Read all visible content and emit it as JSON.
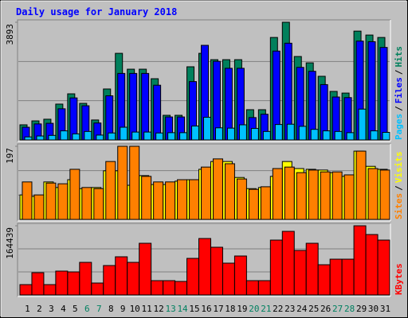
{
  "title": "Daily usage for January 2018",
  "chart_data": [
    {
      "type": "bar",
      "ylim": [
        0,
        3893
      ],
      "yticks": [
        3893
      ],
      "legend_separator": "/",
      "series": [
        {
          "name": "Pages",
          "color": "#00c0ff",
          "values": [
            100,
            130,
            150,
            300,
            200,
            280,
            160,
            230,
            420,
            260,
            260,
            230,
            240,
            240,
            460,
            750,
            400,
            390,
            500,
            380,
            280,
            510,
            520,
            450,
            350,
            300,
            280,
            240,
            1020,
            300,
            250
          ]
        },
        {
          "name": "Files",
          "color": "#0000ff",
          "values": [
            420,
            530,
            550,
            1030,
            1390,
            1130,
            560,
            1460,
            2200,
            2200,
            2200,
            1810,
            760,
            760,
            1930,
            3130,
            2600,
            2370,
            2370,
            740,
            850,
            2940,
            3200,
            2400,
            2270,
            1830,
            1420,
            1400,
            3270,
            3250,
            3060
          ]
        },
        {
          "name": "Hits",
          "color": "#00805c",
          "values": [
            500,
            630,
            685,
            1185,
            1525,
            1210,
            660,
            1685,
            2865,
            2340,
            2340,
            2025,
            815,
            815,
            2420,
            2865,
            2655,
            2655,
            2655,
            1000,
            1000,
            3390,
            3893,
            2760,
            2550,
            2105,
            1605,
            1550,
            3600,
            3470,
            3390
          ]
        }
      ]
    },
    {
      "type": "bar",
      "ylim": [
        0,
        197
      ],
      "yticks": [
        197
      ],
      "legend_separator": "/",
      "series": [
        {
          "name": "Sites",
          "color": "#ff8000",
          "values": [
            101,
            66,
            98,
            96,
            135,
            86,
            83,
            156,
            197,
            197,
            116,
            101,
            101,
            107,
            107,
            141,
            163,
            150,
            109,
            81,
            88,
            137,
            141,
            126,
            133,
            128,
            128,
            120,
            184,
            137,
            133
          ]
        },
        {
          "name": "Visits",
          "color": "#ffff00",
          "values": [
            66,
            62,
            101,
            86,
            107,
            83,
            86,
            131,
            131,
            92,
            118,
            94,
            94,
            103,
            107,
            135,
            156,
            156,
            113,
            83,
            86,
            116,
            156,
            137,
            135,
            133,
            126,
            116,
            184,
            143,
            135
          ]
        }
      ]
    },
    {
      "type": "bar",
      "ylim": [
        0,
        164439
      ],
      "yticks": [
        164439
      ],
      "categories": [
        "1",
        "2",
        "3",
        "4",
        "5",
        "6",
        "7",
        "8",
        "9",
        "10",
        "11",
        "12",
        "13",
        "14",
        "15",
        "16",
        "17",
        "18",
        "19",
        "20",
        "21",
        "22",
        "23",
        "24",
        "25",
        "26",
        "27",
        "28",
        "29",
        "30",
        "31"
      ],
      "category_colors": [
        "#000000",
        "#000000",
        "#000000",
        "#000000",
        "#000000",
        "#008060",
        "#008060",
        "#000000",
        "#000000",
        "#000000",
        "#000000",
        "#000000",
        "#008060",
        "#008060",
        "#000000",
        "#000000",
        "#000000",
        "#000000",
        "#000000",
        "#008060",
        "#008060",
        "#000000",
        "#000000",
        "#000000",
        "#000000",
        "#000000",
        "#008060",
        "#008060",
        "#000000",
        "#000000",
        "#000000"
      ],
      "series": [
        {
          "name": "KBytes",
          "color": "#ff0000",
          "values": [
            24570,
            52920,
            24570,
            56700,
            54810,
            77490,
            28350,
            69930,
            90720,
            77490,
            122850,
            34020,
            34020,
            32130,
            86940,
            134190,
            113400,
            75600,
            92610,
            34020,
            34020,
            130410,
            151200,
            105840,
            122850,
            71820,
            85050,
            85050,
            164439,
            143640,
            130410
          ]
        }
      ]
    }
  ]
}
